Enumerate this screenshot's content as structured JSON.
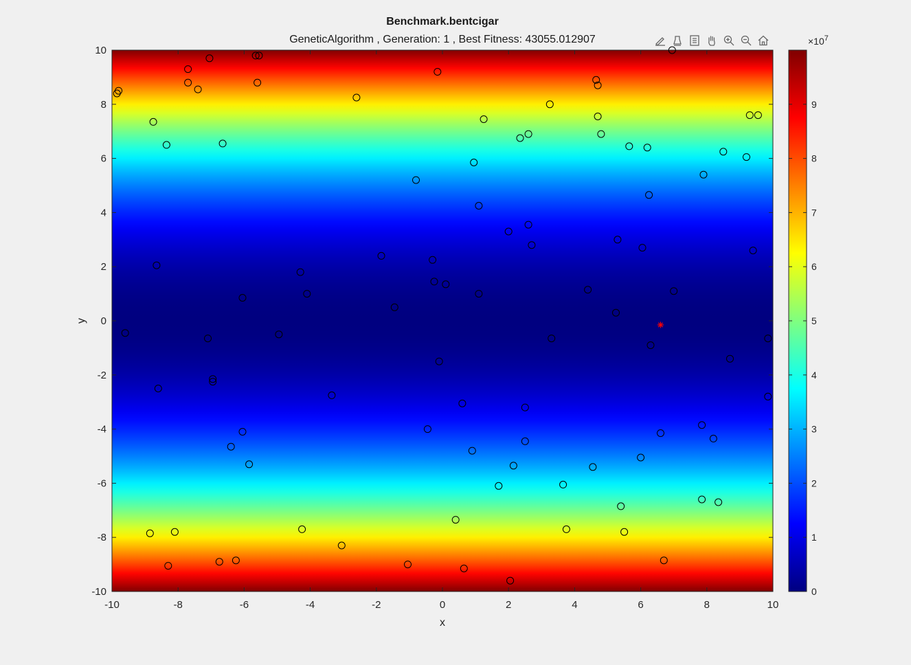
{
  "figure": {
    "title": "Benchmark.bentcigar",
    "subtitle": "GeneticAlgorithm , Generation: 1 , Best Fitness: 43055.012907"
  },
  "toolbar": {
    "items": [
      {
        "name": "brush-icon",
        "label": "Brush"
      },
      {
        "name": "data-tips-icon",
        "label": "Data Tips"
      },
      {
        "name": "export-icon",
        "label": "Export"
      },
      {
        "name": "pan-icon",
        "label": "Pan"
      },
      {
        "name": "zoom-in-icon",
        "label": "Zoom In"
      },
      {
        "name": "zoom-out-icon",
        "label": "Zoom Out"
      },
      {
        "name": "home-icon",
        "label": "Restore View"
      }
    ]
  },
  "chart_data": {
    "type": "scatter",
    "background": "heatmap",
    "heatmap_function": "bentcigar: x^2 + 1e6*y^2",
    "xlabel": "x",
    "ylabel": "y",
    "xlim": [
      -10,
      10
    ],
    "ylim": [
      -10,
      10
    ],
    "xticks": [
      -10,
      -8,
      -6,
      -4,
      -2,
      0,
      2,
      4,
      6,
      8,
      10
    ],
    "yticks": [
      -10,
      -8,
      -6,
      -4,
      -2,
      0,
      2,
      4,
      6,
      8,
      10
    ],
    "colormap": "jet",
    "colorbar": {
      "range": [
        0,
        100000000
      ],
      "exponent_label": "×10",
      "exponent": "7",
      "tick_values": [
        0,
        1,
        2,
        3,
        4,
        5,
        6,
        7,
        8,
        9
      ],
      "tick_labels": [
        "0",
        "1",
        "2",
        "3",
        "4",
        "5",
        "6",
        "7",
        "8",
        "9"
      ]
    },
    "population_marker": "circle",
    "population_color": "#000000",
    "best_marker": "asterisk",
    "best_color": "#ff0000",
    "best": [
      6.6,
      -0.15
    ],
    "population": [
      [
        -9.85,
        8.4
      ],
      [
        -9.8,
        8.5
      ],
      [
        -7.7,
        9.3
      ],
      [
        -7.05,
        9.7
      ],
      [
        -5.65,
        9.8
      ],
      [
        -5.55,
        9.8
      ],
      [
        -7.7,
        8.8
      ],
      [
        -7.4,
        8.55
      ],
      [
        -5.6,
        8.8
      ],
      [
        -2.6,
        8.25
      ],
      [
        -0.15,
        9.2
      ],
      [
        4.65,
        8.9
      ],
      [
        4.7,
        8.7
      ],
      [
        -8.75,
        7.35
      ],
      [
        -8.35,
        6.5
      ],
      [
        -6.65,
        6.55
      ],
      [
        1.25,
        7.45
      ],
      [
        3.25,
        8.0
      ],
      [
        4.7,
        7.55
      ],
      [
        9.3,
        7.6
      ],
      [
        9.55,
        7.6
      ],
      [
        2.35,
        6.75
      ],
      [
        2.6,
        6.9
      ],
      [
        4.8,
        6.9
      ],
      [
        5.65,
        6.45
      ],
      [
        6.2,
        6.4
      ],
      [
        8.5,
        6.25
      ],
      [
        9.2,
        6.05
      ],
      [
        0.95,
        5.85
      ],
      [
        -0.8,
        5.2
      ],
      [
        7.9,
        5.4
      ],
      [
        6.25,
        4.65
      ],
      [
        1.1,
        4.25
      ],
      [
        2.0,
        3.3
      ],
      [
        2.6,
        3.55
      ],
      [
        2.7,
        2.8
      ],
      [
        5.3,
        3.0
      ],
      [
        6.05,
        2.7
      ],
      [
        9.4,
        2.6
      ],
      [
        -8.65,
        2.05
      ],
      [
        -1.85,
        2.4
      ],
      [
        -0.3,
        2.25
      ],
      [
        -4.3,
        1.8
      ],
      [
        -4.1,
        1.0
      ],
      [
        -0.25,
        1.45
      ],
      [
        0.1,
        1.35
      ],
      [
        1.1,
        1.0
      ],
      [
        -6.05,
        0.85
      ],
      [
        4.4,
        1.15
      ],
      [
        7.0,
        1.1
      ],
      [
        -1.45,
        0.5
      ],
      [
        5.25,
        0.3
      ],
      [
        -9.6,
        -0.45
      ],
      [
        -4.95,
        -0.5
      ],
      [
        -7.1,
        -0.65
      ],
      [
        3.3,
        -0.65
      ],
      [
        6.3,
        -0.9
      ],
      [
        9.85,
        -0.65
      ],
      [
        -0.1,
        -1.5
      ],
      [
        8.7,
        -1.4
      ],
      [
        -6.95,
        -2.15
      ],
      [
        -6.95,
        -2.25
      ],
      [
        -8.6,
        -2.5
      ],
      [
        -3.35,
        -2.75
      ],
      [
        0.6,
        -3.05
      ],
      [
        2.5,
        -3.2
      ],
      [
        9.85,
        -2.8
      ],
      [
        -6.05,
        -4.1
      ],
      [
        -0.45,
        -4.0
      ],
      [
        6.6,
        -4.15
      ],
      [
        7.85,
        -3.85
      ],
      [
        8.2,
        -4.35
      ],
      [
        -6.4,
        -4.65
      ],
      [
        2.5,
        -4.45
      ],
      [
        0.9,
        -4.8
      ],
      [
        -5.85,
        -5.3
      ],
      [
        2.15,
        -5.35
      ],
      [
        4.55,
        -5.4
      ],
      [
        6.0,
        -5.05
      ],
      [
        1.7,
        -6.1
      ],
      [
        3.65,
        -6.05
      ],
      [
        5.4,
        -6.85
      ],
      [
        7.85,
        -6.6
      ],
      [
        8.35,
        -6.7
      ],
      [
        0.4,
        -7.35
      ],
      [
        -4.25,
        -7.7
      ],
      [
        3.75,
        -7.7
      ],
      [
        5.5,
        -7.8
      ],
      [
        -8.85,
        -7.85
      ],
      [
        -8.1,
        -7.8
      ],
      [
        -3.05,
        -8.3
      ],
      [
        -8.3,
        -9.05
      ],
      [
        -6.75,
        -8.9
      ],
      [
        -6.25,
        -8.85
      ],
      [
        -1.05,
        -9.0
      ],
      [
        0.65,
        -9.15
      ],
      [
        6.7,
        -8.85
      ],
      [
        2.05,
        -9.6
      ],
      [
        6.95,
        10.0
      ]
    ]
  }
}
